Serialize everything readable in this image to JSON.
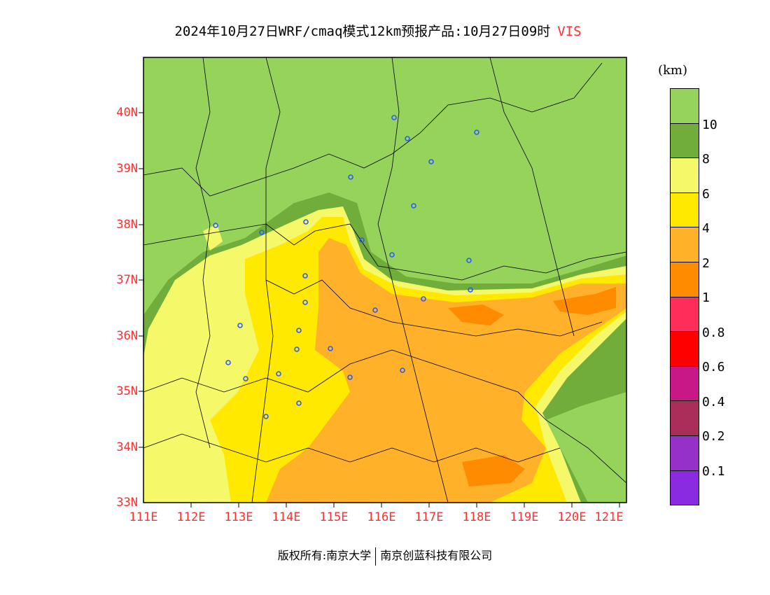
{
  "title": {
    "text": "2024年10月27日WRF/cmaq模式12km预报产品:10月27日09时",
    "variable": "VIS"
  },
  "axes": {
    "lat_ticks": [
      "40N",
      "39N",
      "38N",
      "37N",
      "36N",
      "35N",
      "34N",
      "33N"
    ],
    "lon_ticks": [
      "111E",
      "112E",
      "113E",
      "114E",
      "115E",
      "116E",
      "117E",
      "118E",
      "119E",
      "120E",
      "121E"
    ]
  },
  "legend": {
    "unit": "(km)",
    "colors": [
      "#96d35a",
      "#70ad3a",
      "#f4f869",
      "#ffe900",
      "#ffb12a",
      "#ff8c00",
      "#ff2d5a",
      "#ff0000",
      "#c81787",
      "#aa2e5a",
      "#9631c8",
      "#8a2be2"
    ],
    "labels": [
      "10",
      "8",
      "6",
      "4",
      "2",
      "1",
      "0.8",
      "0.6",
      "0.4",
      "0.2",
      "0.1"
    ]
  },
  "footer": {
    "left": "版权所有:南京大学",
    "right": "南京创蓝科技有限公司"
  }
}
